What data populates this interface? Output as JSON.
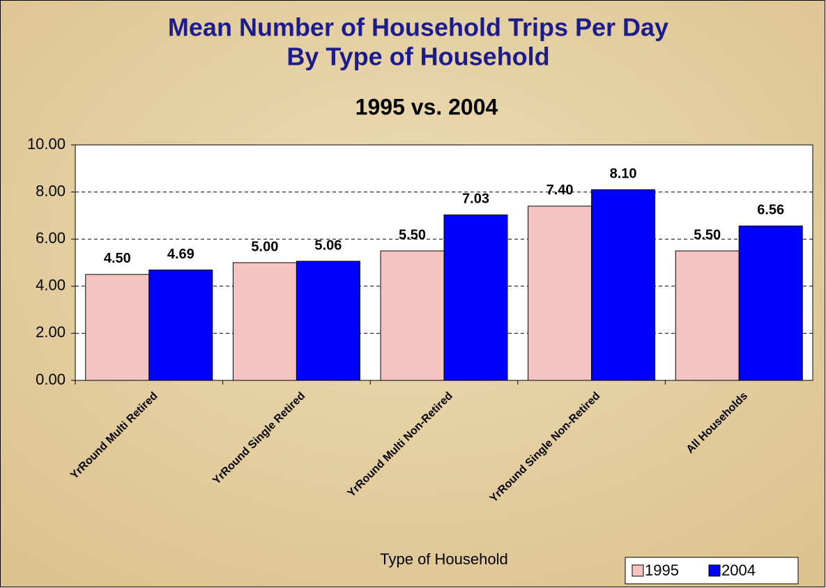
{
  "chart_data": {
    "type": "bar",
    "title": [
      "Mean Number of Household Trips Per Day",
      "By Type of Household"
    ],
    "subtitle": "1995 vs. 2004",
    "x_label": "Type of Household",
    "categories": [
      "YrRound Multi Retired",
      "YrRound Single Retired",
      "YrRound Multi Non-Retired",
      "YrRound Single Non-Retired",
      "All Households"
    ],
    "series": [
      {
        "name": "1995",
        "color": "#f5c4c0",
        "values": [
          4.5,
          5.0,
          5.5,
          7.4,
          5.5
        ],
        "value_labels": [
          "4.50",
          "5.00",
          "5.50",
          "7.40",
          "5.50"
        ]
      },
      {
        "name": "2004",
        "color": "#0000ff",
        "values": [
          4.69,
          5.06,
          7.03,
          8.1,
          6.56
        ],
        "value_labels": [
          "4.69",
          "5.06",
          "7.03",
          "8.10",
          "6.56"
        ]
      }
    ],
    "ylim": [
      0,
      10
    ],
    "yticks": [
      {
        "value": 0,
        "label": "0.00"
      },
      {
        "value": 2,
        "label": "2.00"
      },
      {
        "value": 4,
        "label": "4.00"
      },
      {
        "value": 6,
        "label": "6.00"
      },
      {
        "value": 8,
        "label": "8.00"
      },
      {
        "value": 10,
        "label": "10.00"
      }
    ],
    "grid": true,
    "legend": "bottom-right"
  }
}
